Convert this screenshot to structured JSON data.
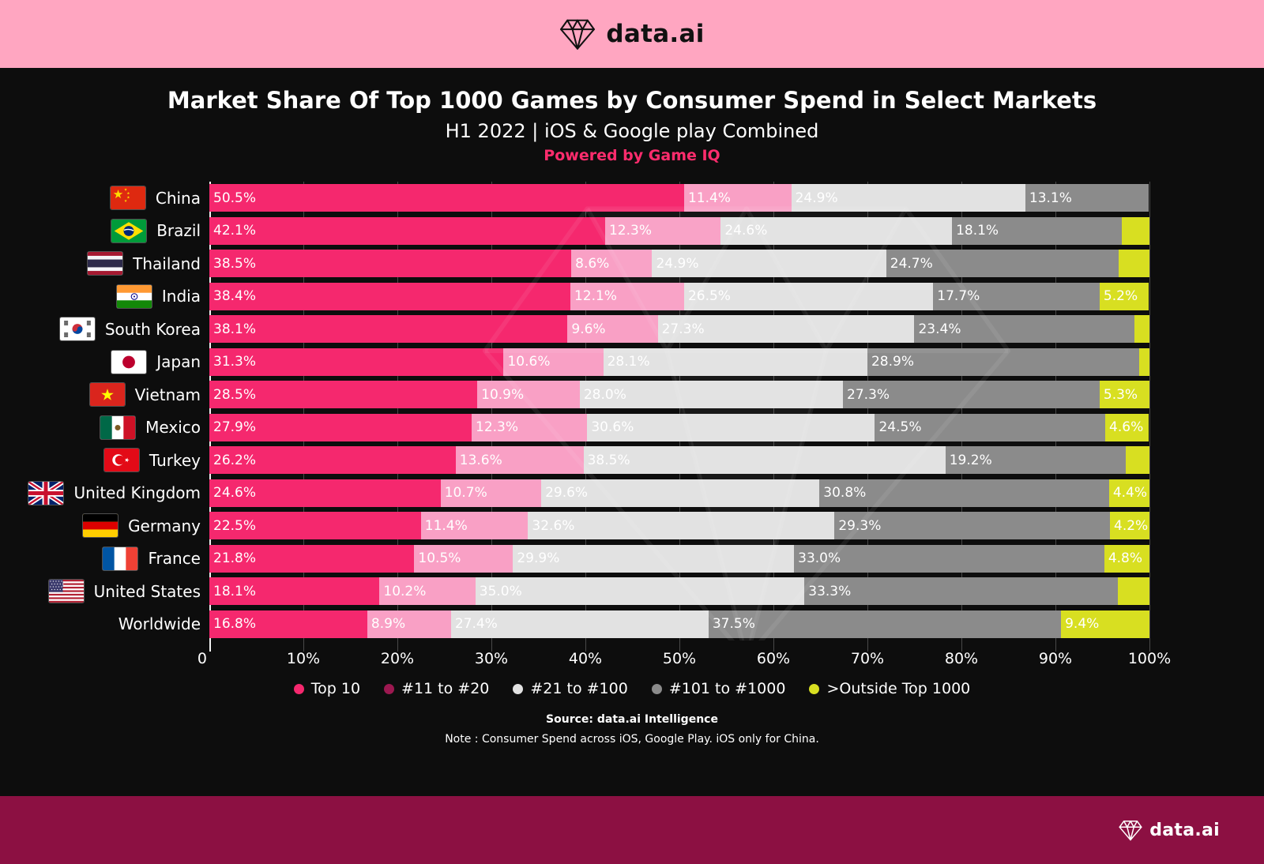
{
  "brand": {
    "logo_text": "data.ai"
  },
  "header": {
    "title": "Market Share Of Top 1000 Games by Consumer Spend in Select Markets",
    "subtitle": "H1 2022 | iOS & Google play Combined",
    "powered_by": "Powered by Game IQ"
  },
  "chart_data": {
    "type": "bar",
    "stacked": true,
    "orientation": "horizontal",
    "unit": "%",
    "xlim": [
      0,
      100
    ],
    "x_ticks": [
      "0",
      "10%",
      "20%",
      "30%",
      "40%",
      "50%",
      "60%",
      "70%",
      "80%",
      "90%",
      "100%"
    ],
    "series_names": [
      "Top 10",
      "#11 to #20",
      "#21 to #100",
      "#101 to #1000",
      ">Outside Top 1000"
    ],
    "rows": [
      {
        "country": "China",
        "flag": "china-flag",
        "values": [
          50.5,
          11.4,
          24.9,
          13.1
        ],
        "outside": null
      },
      {
        "country": "Brazil",
        "flag": "brazil-flag",
        "values": [
          42.1,
          12.3,
          24.6,
          18.1
        ],
        "outside": null
      },
      {
        "country": "Thailand",
        "flag": "thailand-flag",
        "values": [
          38.5,
          8.6,
          24.9,
          24.7
        ],
        "outside": null
      },
      {
        "country": "India",
        "flag": "india-flag",
        "values": [
          38.4,
          12.1,
          26.5,
          17.7
        ],
        "outside": 5.2
      },
      {
        "country": "South Korea",
        "flag": "south-korea-flag",
        "values": [
          38.1,
          9.6,
          27.3,
          23.4
        ],
        "outside": null
      },
      {
        "country": "Japan",
        "flag": "japan-flag",
        "values": [
          31.3,
          10.6,
          28.1,
          28.9
        ],
        "outside": null
      },
      {
        "country": "Vietnam",
        "flag": "vietnam-flag",
        "values": [
          28.5,
          10.9,
          28.0,
          27.3
        ],
        "outside": 5.3
      },
      {
        "country": "Mexico",
        "flag": "mexico-flag",
        "values": [
          27.9,
          12.3,
          30.6,
          24.5
        ],
        "outside": 4.6
      },
      {
        "country": "Turkey",
        "flag": "turkey-flag",
        "values": [
          26.2,
          13.6,
          38.5,
          19.2
        ],
        "outside": null
      },
      {
        "country": "United Kingdom",
        "flag": "uk-flag",
        "values": [
          24.6,
          10.7,
          29.6,
          30.8
        ],
        "outside": 4.4
      },
      {
        "country": "Germany",
        "flag": "germany-flag",
        "values": [
          22.5,
          11.4,
          32.6,
          29.3
        ],
        "outside": 4.2
      },
      {
        "country": "France",
        "flag": "france-flag",
        "values": [
          21.8,
          10.5,
          29.9,
          33.0
        ],
        "outside": 4.8
      },
      {
        "country": "United States",
        "flag": "us-flag",
        "values": [
          18.1,
          10.2,
          35.0,
          33.3
        ],
        "outside": null
      },
      {
        "country": "Worldwide",
        "flag": null,
        "values": [
          16.8,
          8.9,
          27.4,
          37.5
        ],
        "outside": 9.4
      }
    ]
  },
  "legend": {
    "items": [
      {
        "label": "Top 10",
        "color": "#F5286E"
      },
      {
        "label": "#11 to #20",
        "color": "#9C1850"
      },
      {
        "label": "#21 to #100",
        "color": "#E2E2E2"
      },
      {
        "label": "#101 to #1000",
        "color": "#8B8B8B"
      },
      {
        "label": ">Outside Top 1000",
        "color": "#D8DF21"
      }
    ]
  },
  "footnotes": {
    "source": "Source: data.ai Intelligence",
    "note": "Note : Consumer Spend across iOS, Google Play. iOS only for China."
  },
  "colors": {
    "banner_top_bg": "#FFA6C1",
    "background": "#0D0D0D",
    "footer_bg": "#8C1042",
    "accent_pink": "#FF2C6D",
    "series": {
      "top10": "#F5286E",
      "rank11_20": "#F9A0C5",
      "rank21_100": "#E2E2E2",
      "rank101_1000": "#8B8B8B",
      "outside_top1000": "#D8DF21"
    }
  }
}
